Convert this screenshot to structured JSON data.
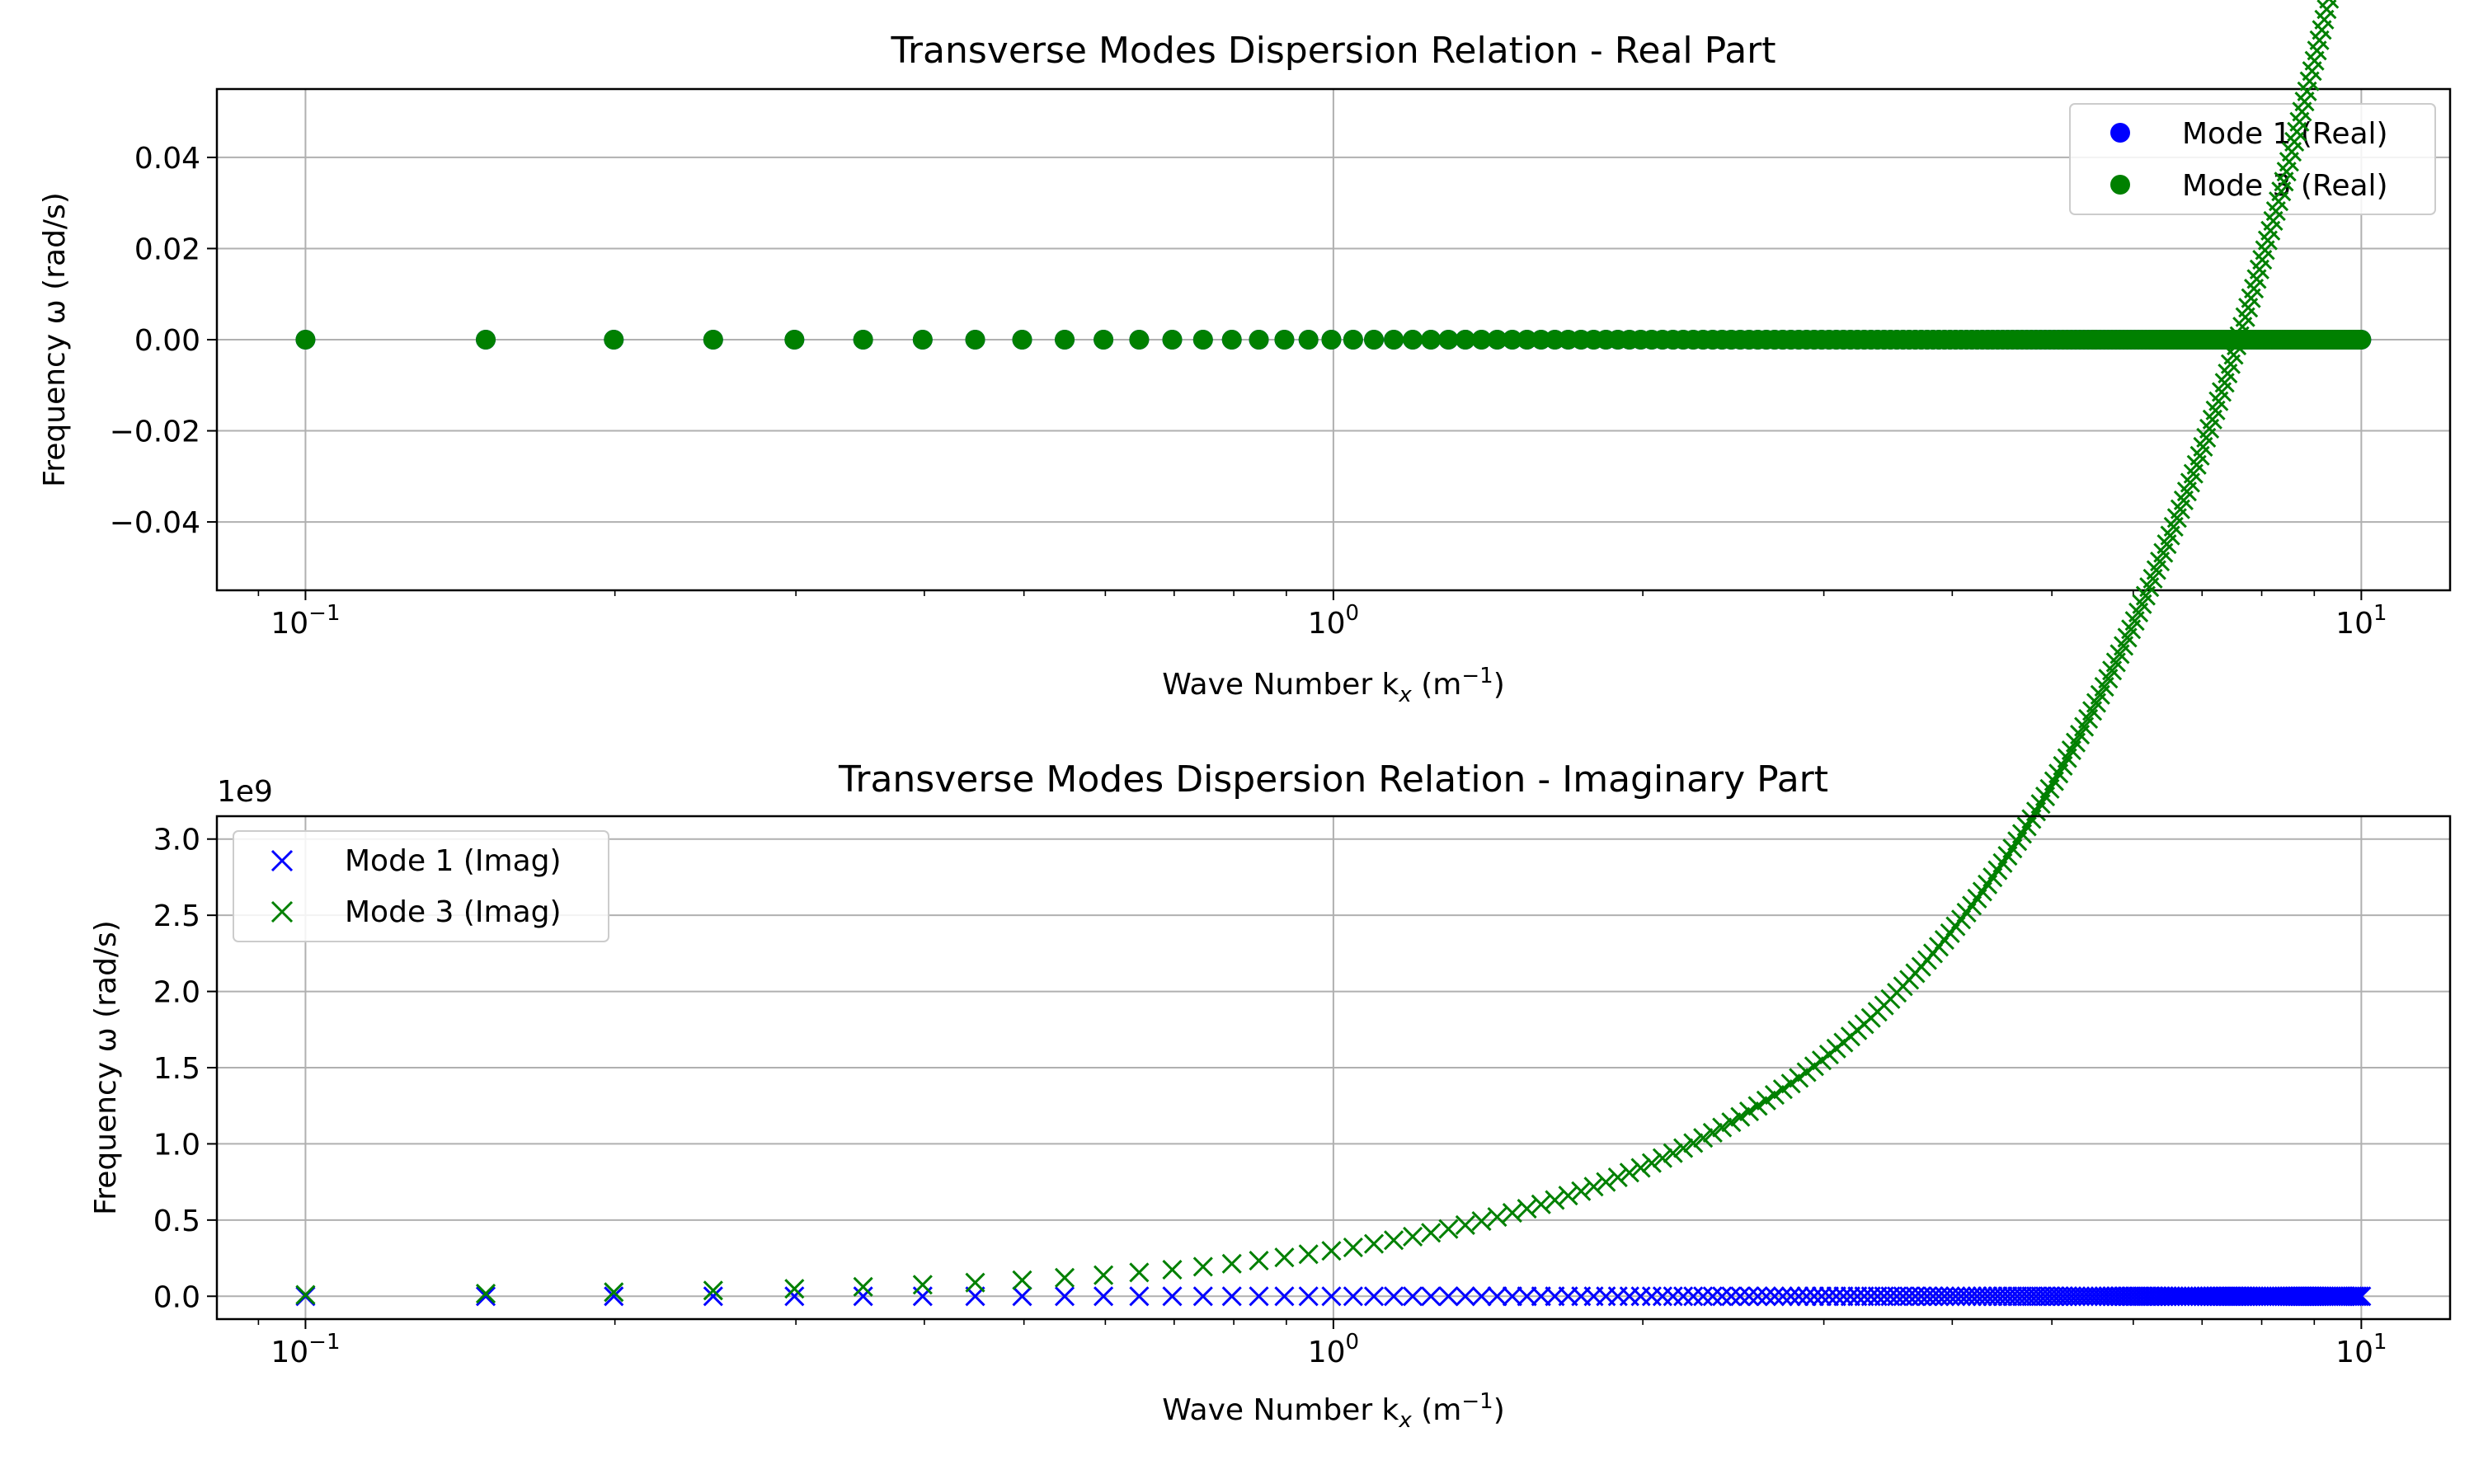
{
  "colors": {
    "mode1": "#0000ff",
    "mode3": "#008000"
  },
  "chart_data": [
    {
      "type": "scatter",
      "title": "Transverse Modes Dispersion Relation - Real Part",
      "xlabel_prefix": "Wave Number k",
      "xlabel_sub": "x",
      "xlabel_unit_open": " (m",
      "xlabel_unit_sup": "−1",
      "xlabel_unit_close": ")",
      "ylabel": "Frequency ω (rad/s)",
      "xscale": "log",
      "xlim": [
        0.082,
        12.2
      ],
      "ylim": [
        -0.055,
        0.055
      ],
      "grid": true,
      "legend_position": "top-right",
      "x_tick_labels": [
        {
          "base": "10",
          "exp": "−1",
          "value": 0.1
        },
        {
          "base": "10",
          "exp": "0",
          "value": 1
        },
        {
          "base": "10",
          "exp": "1",
          "value": 10
        }
      ],
      "y_tick_labels": [
        {
          "label": "0.04",
          "value": 0.04
        },
        {
          "label": "0.02",
          "value": 0.02
        },
        {
          "label": "0.00",
          "value": 0.0
        },
        {
          "label": "−0.02",
          "value": -0.02
        },
        {
          "label": "−0.04",
          "value": -0.04
        }
      ],
      "x": {
        "start": 0.1,
        "end": 10.0,
        "count": 200
      },
      "series": [
        {
          "name": "Mode 1 (Real)",
          "marker": "circle",
          "color": "#0000ff",
          "y_formula": "zero"
        },
        {
          "name": "Mode 3 (Real)",
          "marker": "circle",
          "color": "#008000",
          "y_formula": "zero"
        }
      ]
    },
    {
      "type": "scatter",
      "title": "Transverse Modes Dispersion Relation - Imaginary Part",
      "xlabel_prefix": "Wave Number k",
      "xlabel_sub": "x",
      "xlabel_unit_open": " (m",
      "xlabel_unit_sup": "−1",
      "xlabel_unit_close": ")",
      "ylabel": "Frequency ω (rad/s)",
      "y_offset_label": "1e9",
      "xscale": "log",
      "xlim": [
        0.082,
        12.2
      ],
      "ylim": [
        -0.15,
        3.15
      ],
      "grid": true,
      "legend_position": "top-left",
      "x_tick_labels": [
        {
          "base": "10",
          "exp": "−1",
          "value": 0.1
        },
        {
          "base": "10",
          "exp": "0",
          "value": 1
        },
        {
          "base": "10",
          "exp": "1",
          "value": 10
        }
      ],
      "y_tick_labels": [
        {
          "label": "3.0",
          "value": 3.0
        },
        {
          "label": "2.5",
          "value": 2.5
        },
        {
          "label": "2.0",
          "value": 2.0
        },
        {
          "label": "1.5",
          "value": 1.5
        },
        {
          "label": "1.0",
          "value": 1.0
        },
        {
          "label": "0.5",
          "value": 0.5
        },
        {
          "label": "0.0",
          "value": 0.0
        }
      ],
      "x": {
        "start": 0.1,
        "end": 10.0,
        "count": 200
      },
      "series": [
        {
          "name": "Mode 1 (Imag)",
          "marker": "x",
          "color": "#0000ff",
          "y_formula": "zero"
        },
        {
          "name": "Mode 3 (Imag)",
          "marker": "x",
          "color": "#008000",
          "y_formula": "0.3 * k^1.5"
        }
      ]
    }
  ]
}
